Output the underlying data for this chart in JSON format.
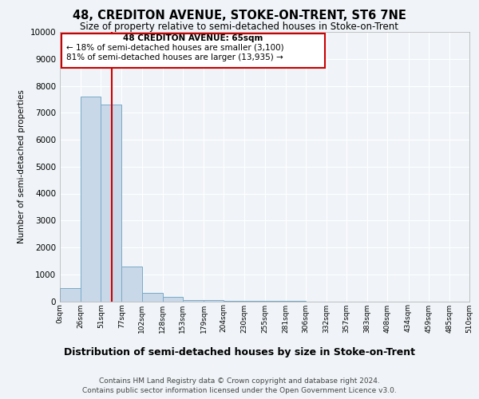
{
  "title": "48, CREDITON AVENUE, STOKE-ON-TRENT, ST6 7NE",
  "subtitle": "Size of property relative to semi-detached houses in Stoke-on-Trent",
  "xlabel": "Distribution of semi-detached houses by size in Stoke-on-Trent",
  "ylabel": "Number of semi-detached properties",
  "footer1": "Contains HM Land Registry data © Crown copyright and database right 2024.",
  "footer2": "Contains public sector information licensed under the Open Government Licence v3.0.",
  "annotation_title": "48 CREDITON AVENUE: 65sqm",
  "annotation_line1": "← 18% of semi-detached houses are smaller (3,100)",
  "annotation_line2": "81% of semi-detached houses are larger (13,935) →",
  "property_size": 65,
  "bin_edges": [
    0,
    26,
    51,
    77,
    102,
    128,
    153,
    179,
    204,
    230,
    255,
    281,
    306,
    332,
    357,
    383,
    408,
    434,
    459,
    485,
    510
  ],
  "bar_heights": [
    500,
    7600,
    7300,
    1300,
    300,
    150,
    50,
    30,
    10,
    5,
    2,
    1,
    0,
    0,
    0,
    0,
    0,
    0,
    0,
    0
  ],
  "bar_color": "#c8d8e8",
  "bar_edge_color": "#7aaac8",
  "vline_color": "#cc0000",
  "annotation_box_color": "#cc0000",
  "background_color": "#f0f4f8",
  "ylim": [
    0,
    10000
  ],
  "yticks": [
    0,
    1000,
    2000,
    3000,
    4000,
    5000,
    6000,
    7000,
    8000,
    9000,
    10000
  ]
}
